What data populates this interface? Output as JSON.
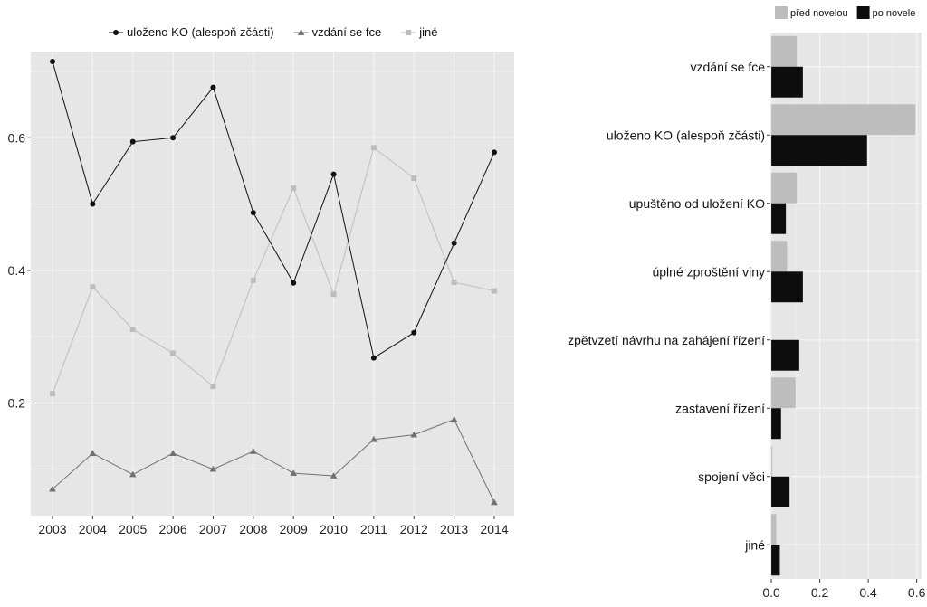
{
  "chart_data": [
    {
      "type": "line",
      "x": [
        "2003",
        "2004",
        "2005",
        "2006",
        "2007",
        "2008",
        "2009",
        "2010",
        "2011",
        "2012",
        "2013",
        "2014"
      ],
      "ylim": [
        0.03,
        0.73
      ],
      "y_ticks": [
        "0.2",
        "0.4",
        "0.6"
      ],
      "grid": true,
      "legend_position": "top",
      "series": [
        {
          "name": "uloženo KO (alespoň zčásti)",
          "color": "#111111",
          "marker": "circle",
          "values": [
            0.715,
            0.5,
            0.594,
            0.6,
            0.676,
            0.487,
            0.381,
            0.545,
            0.268,
            0.306,
            0.441,
            0.578
          ]
        },
        {
          "name": "vzdání se fce",
          "color": "#707070",
          "marker": "triangle",
          "values": [
            0.07,
            0.124,
            0.092,
            0.124,
            0.1,
            0.127,
            0.094,
            0.09,
            0.145,
            0.152,
            0.175,
            0.05
          ]
        },
        {
          "name": "jiné",
          "color": "#bdbdbd",
          "marker": "square",
          "values": [
            0.214,
            0.375,
            0.311,
            0.275,
            0.225,
            0.385,
            0.524,
            0.364,
            0.585,
            0.539,
            0.382,
            0.369
          ]
        }
      ]
    },
    {
      "type": "bar",
      "orientation": "horizontal",
      "categories": [
        "vzdání se fce",
        "uloženo KO (alespoň zčásti)",
        "upuštěno od uložení KO",
        "úplné zproštění viny",
        "zpětvzetí návrhu na zahájení řízení",
        "zastavení řízení",
        "spojení věci",
        "jiné"
      ],
      "xlim": [
        -0.004,
        0.62
      ],
      "x_ticks": [
        "0.0",
        "0.2",
        "0.4",
        "0.6"
      ],
      "grid": true,
      "legend_position": "top",
      "series": [
        {
          "name": "před novelou",
          "color": "#bdbdbd",
          "values": [
            0.105,
            0.595,
            0.105,
            0.065,
            0.0,
            0.1,
            0.004,
            0.02
          ]
        },
        {
          "name": "po novele",
          "color": "#0d0d0d",
          "values": [
            0.13,
            0.395,
            0.06,
            0.13,
            0.115,
            0.04,
            0.075,
            0.035
          ]
        }
      ]
    }
  ]
}
